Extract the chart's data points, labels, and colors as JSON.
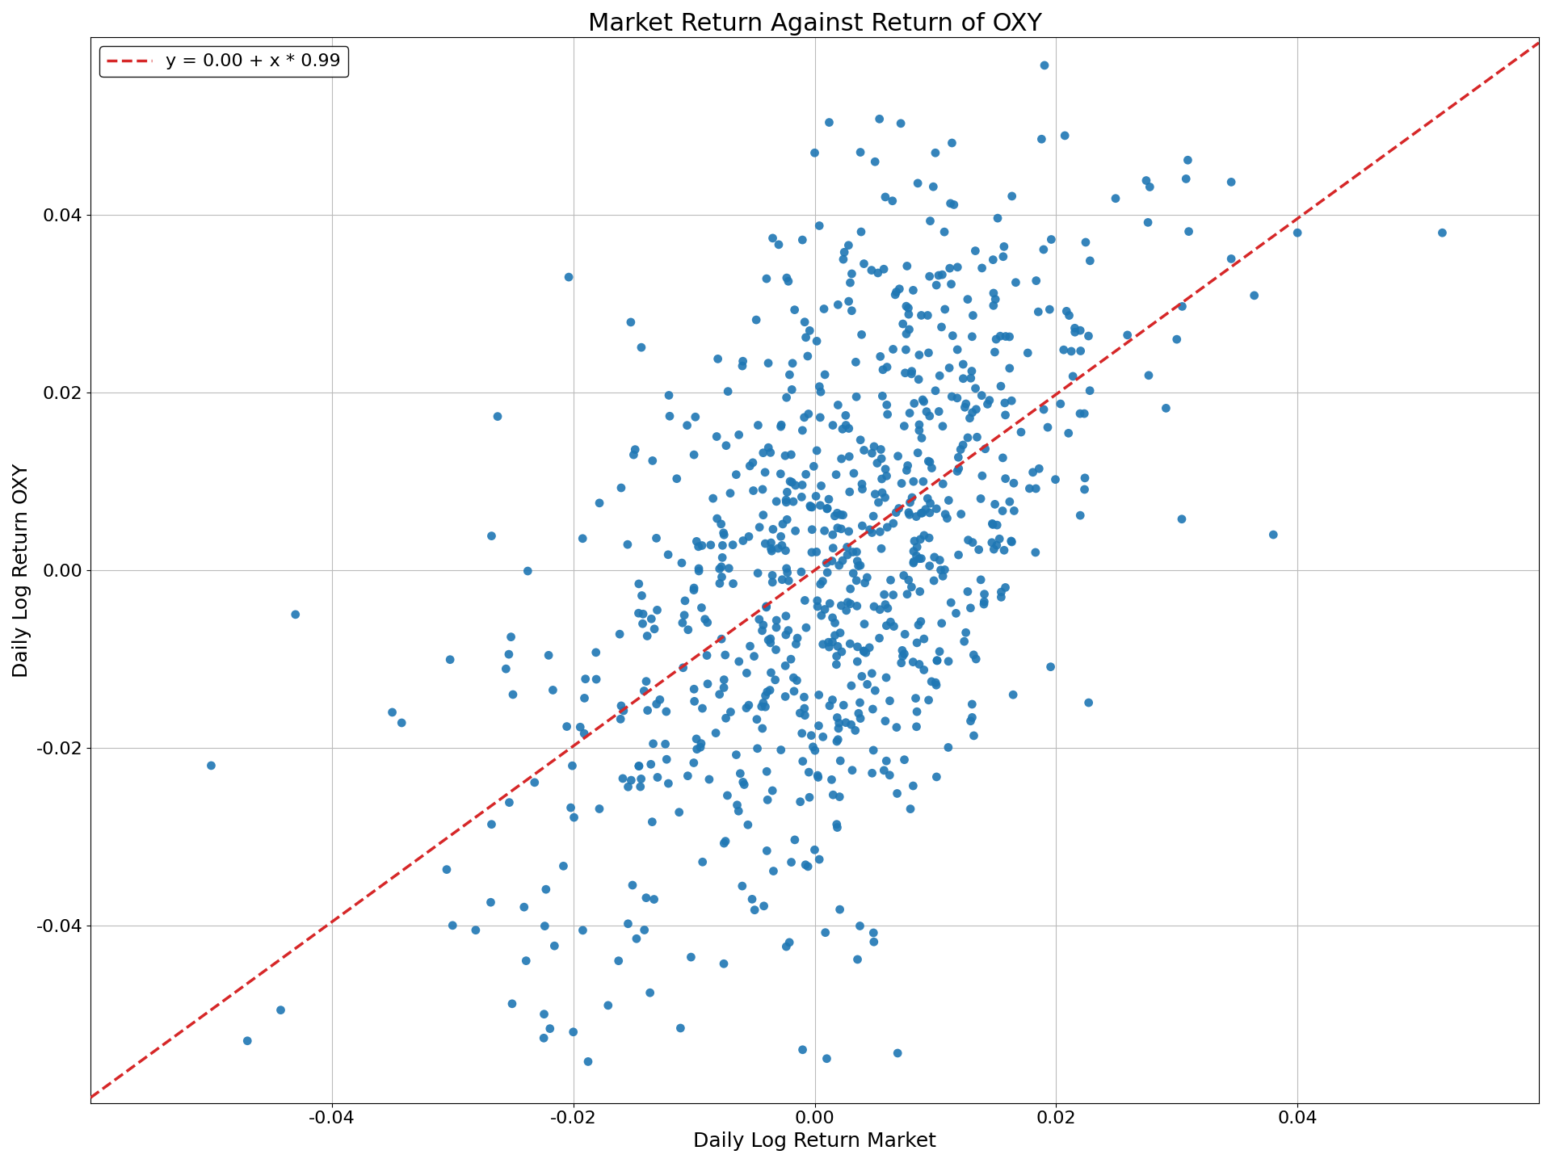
{
  "title": "Market Return Against Return of OXY",
  "xlabel": "Daily Log Return Market",
  "ylabel": "Daily Log Return OXY",
  "intercept": 0.0,
  "slope": 0.99,
  "legend_label": "y = 0.00 + x * 0.99",
  "dot_color": "#1f77b4",
  "line_color": "#d62728",
  "dot_size": 60,
  "xlim": [
    -0.06,
    0.06
  ],
  "ylim": [
    -0.06,
    0.06
  ],
  "xticks": [
    -0.04,
    -0.02,
    0.0,
    0.02,
    0.04
  ],
  "yticks": [
    -0.04,
    -0.02,
    0.0,
    0.02,
    0.04
  ],
  "title_fontsize": 22,
  "label_fontsize": 18,
  "tick_fontsize": 16,
  "legend_fontsize": 16,
  "n_points": 800,
  "seed": 12345,
  "market_std": 0.01,
  "oxy_noise_std": 0.018,
  "background_color": "#ffffff",
  "grid_color": "#bbbbbb",
  "figwidth": 19.2,
  "figheight": 14.4,
  "dpi": 100
}
